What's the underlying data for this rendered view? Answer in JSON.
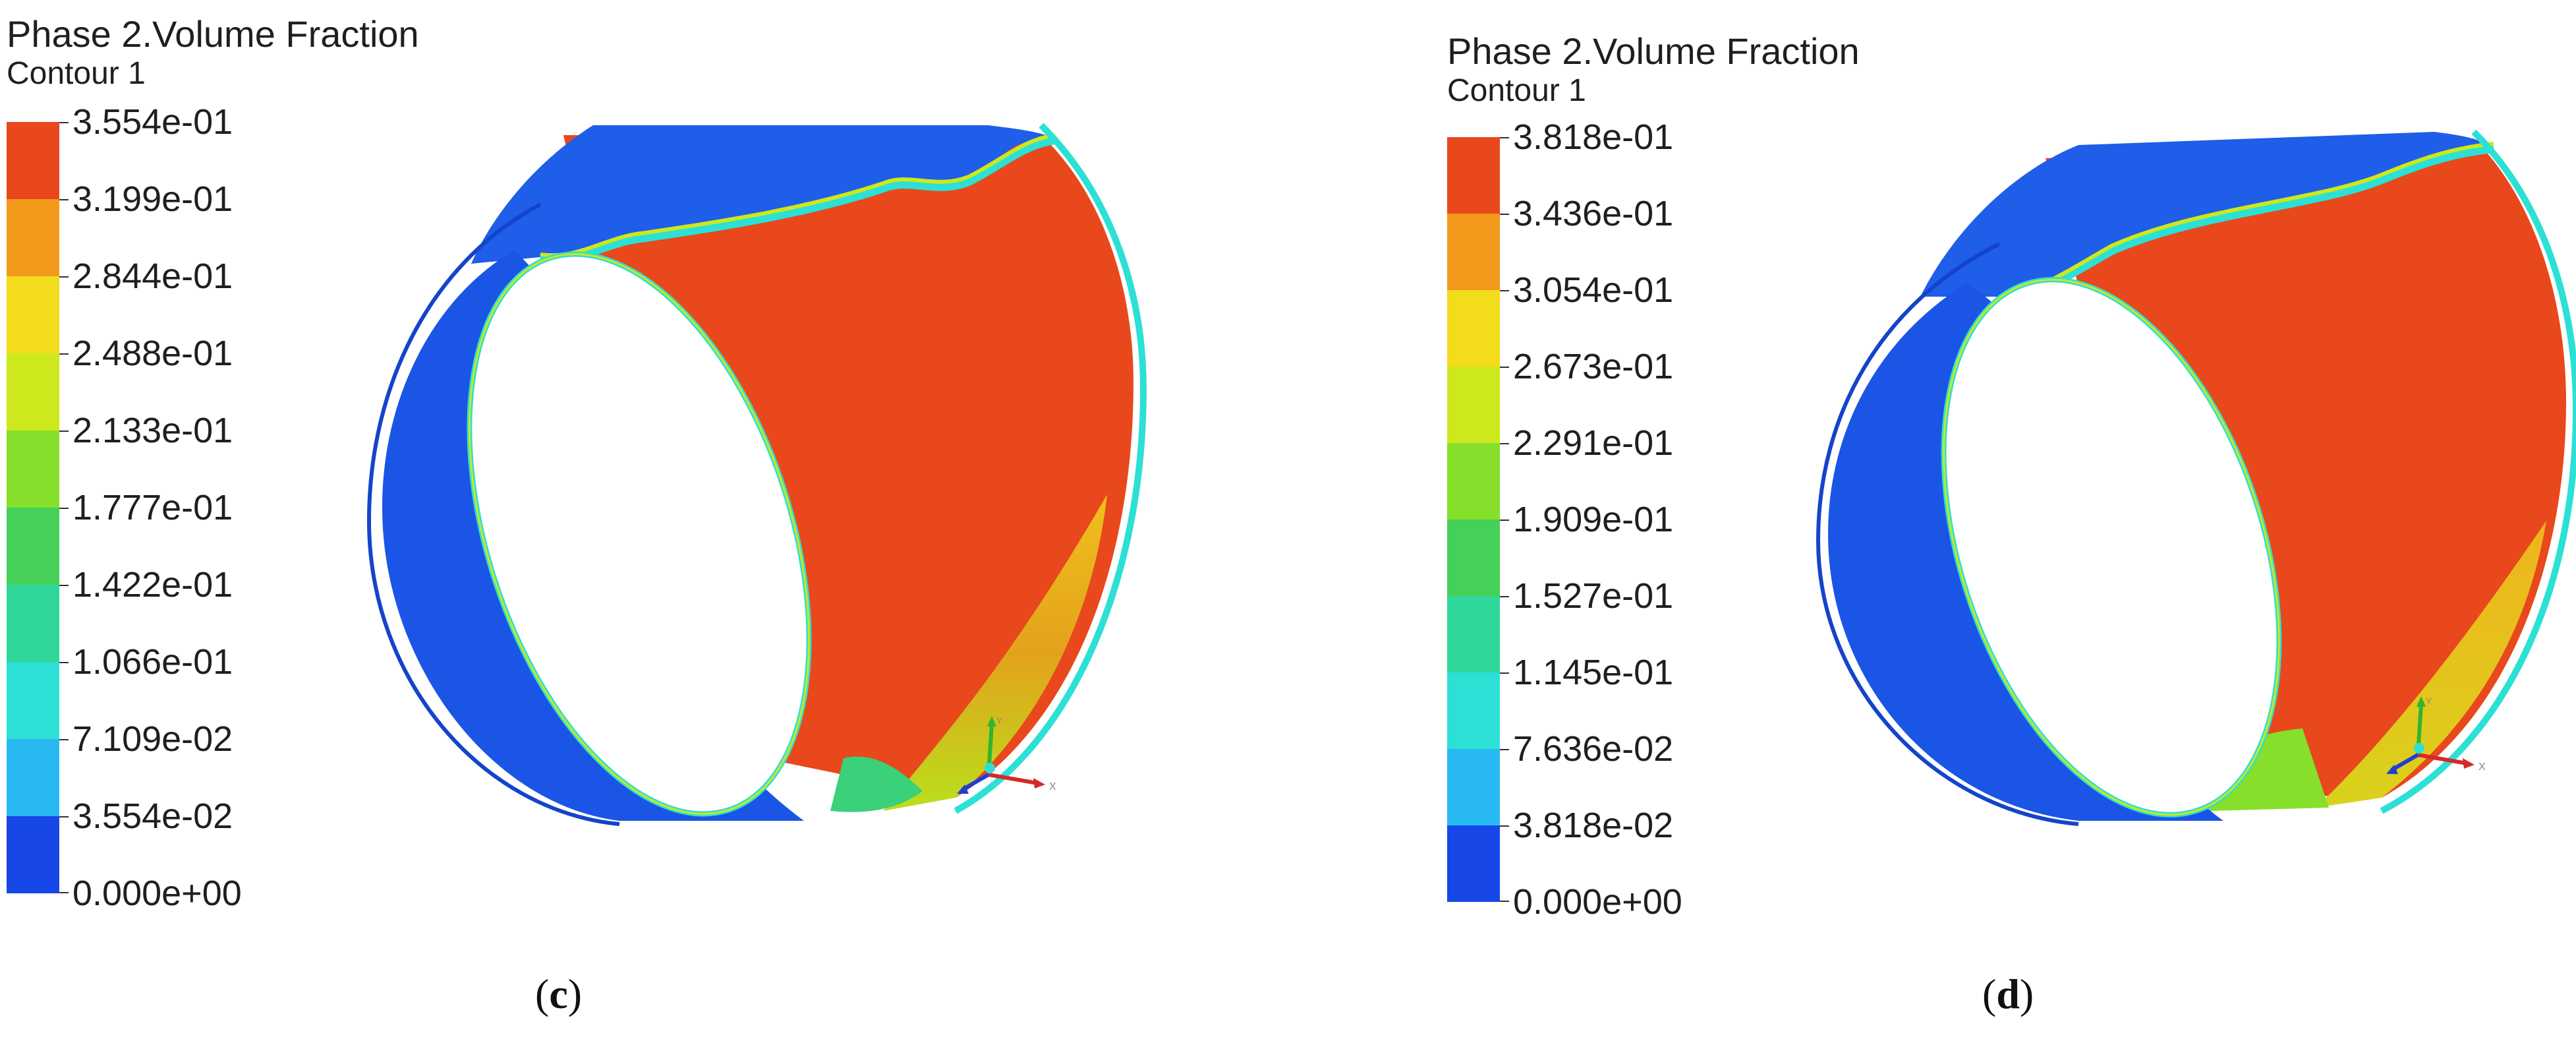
{
  "panels": {
    "c": {
      "title": "Phase 2.Volume Fraction",
      "subtitle": "Contour 1",
      "ticks": [
        "3.554e-01",
        "3.199e-01",
        "2.844e-01",
        "2.488e-01",
        "2.133e-01",
        "1.777e-01",
        "1.422e-01",
        "1.066e-01",
        "7.109e-02",
        "3.554e-02",
        "0.000e+00"
      ],
      "caption_open": "(",
      "caption_letter": "c",
      "caption_close": ")"
    },
    "d": {
      "title": "Phase 2.Volume Fraction",
      "subtitle": "Contour 1",
      "ticks": [
        "3.818e-01",
        "3.436e-01",
        "3.054e-01",
        "2.673e-01",
        "2.291e-01",
        "1.909e-01",
        "1.527e-01",
        "1.145e-01",
        "7.636e-02",
        "3.818e-02",
        "0.000e+00"
      ],
      "caption_open": "(",
      "caption_letter": "d",
      "caption_close": ")"
    }
  },
  "axis_labels": {
    "x": "X",
    "y": "Y"
  },
  "colormap": [
    "#e8481c",
    "#f39a1c",
    "#f2dc1c",
    "#cde81c",
    "#86df2a",
    "#45d05a",
    "#2fd79a",
    "#2ce0d5",
    "#29b9f2",
    "#1c7cf0",
    "#1747e6"
  ],
  "icon": "axis-triad-icon"
}
